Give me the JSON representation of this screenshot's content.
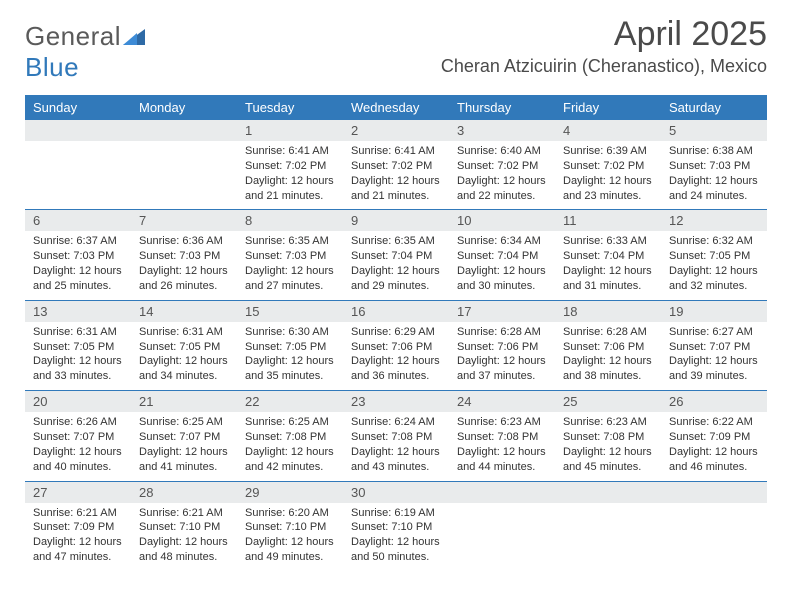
{
  "logo": {
    "text1": "General",
    "text2": "Blue"
  },
  "title": "April 2025",
  "location": "Cheran Atzicuirin (Cheranastico), Mexico",
  "weekdays": [
    "Sunday",
    "Monday",
    "Tuesday",
    "Wednesday",
    "Thursday",
    "Friday",
    "Saturday"
  ],
  "colors": {
    "headerBar": "#3179ba",
    "dayNumBg": "#e9ebec",
    "text": "#333333",
    "titleText": "#4a4a4a",
    "logoGray": "#5a5a5a",
    "logoBlue": "#3179ba",
    "background": "#ffffff"
  },
  "layout": {
    "pageWidth": 792,
    "pageHeight": 612,
    "columns": 7,
    "rows": 5,
    "titleFontSize": 34,
    "locationFontSize": 18,
    "weekdayFontSize": 13,
    "dayNumFontSize": 13,
    "bodyFontSize": 11
  },
  "weeks": [
    [
      null,
      null,
      {
        "num": "1",
        "sunrise": "6:41 AM",
        "sunset": "7:02 PM",
        "daylight": "12 hours and 21 minutes."
      },
      {
        "num": "2",
        "sunrise": "6:41 AM",
        "sunset": "7:02 PM",
        "daylight": "12 hours and 21 minutes."
      },
      {
        "num": "3",
        "sunrise": "6:40 AM",
        "sunset": "7:02 PM",
        "daylight": "12 hours and 22 minutes."
      },
      {
        "num": "4",
        "sunrise": "6:39 AM",
        "sunset": "7:02 PM",
        "daylight": "12 hours and 23 minutes."
      },
      {
        "num": "5",
        "sunrise": "6:38 AM",
        "sunset": "7:03 PM",
        "daylight": "12 hours and 24 minutes."
      }
    ],
    [
      {
        "num": "6",
        "sunrise": "6:37 AM",
        "sunset": "7:03 PM",
        "daylight": "12 hours and 25 minutes."
      },
      {
        "num": "7",
        "sunrise": "6:36 AM",
        "sunset": "7:03 PM",
        "daylight": "12 hours and 26 minutes."
      },
      {
        "num": "8",
        "sunrise": "6:35 AM",
        "sunset": "7:03 PM",
        "daylight": "12 hours and 27 minutes."
      },
      {
        "num": "9",
        "sunrise": "6:35 AM",
        "sunset": "7:04 PM",
        "daylight": "12 hours and 29 minutes."
      },
      {
        "num": "10",
        "sunrise": "6:34 AM",
        "sunset": "7:04 PM",
        "daylight": "12 hours and 30 minutes."
      },
      {
        "num": "11",
        "sunrise": "6:33 AM",
        "sunset": "7:04 PM",
        "daylight": "12 hours and 31 minutes."
      },
      {
        "num": "12",
        "sunrise": "6:32 AM",
        "sunset": "7:05 PM",
        "daylight": "12 hours and 32 minutes."
      }
    ],
    [
      {
        "num": "13",
        "sunrise": "6:31 AM",
        "sunset": "7:05 PM",
        "daylight": "12 hours and 33 minutes."
      },
      {
        "num": "14",
        "sunrise": "6:31 AM",
        "sunset": "7:05 PM",
        "daylight": "12 hours and 34 minutes."
      },
      {
        "num": "15",
        "sunrise": "6:30 AM",
        "sunset": "7:05 PM",
        "daylight": "12 hours and 35 minutes."
      },
      {
        "num": "16",
        "sunrise": "6:29 AM",
        "sunset": "7:06 PM",
        "daylight": "12 hours and 36 minutes."
      },
      {
        "num": "17",
        "sunrise": "6:28 AM",
        "sunset": "7:06 PM",
        "daylight": "12 hours and 37 minutes."
      },
      {
        "num": "18",
        "sunrise": "6:28 AM",
        "sunset": "7:06 PM",
        "daylight": "12 hours and 38 minutes."
      },
      {
        "num": "19",
        "sunrise": "6:27 AM",
        "sunset": "7:07 PM",
        "daylight": "12 hours and 39 minutes."
      }
    ],
    [
      {
        "num": "20",
        "sunrise": "6:26 AM",
        "sunset": "7:07 PM",
        "daylight": "12 hours and 40 minutes."
      },
      {
        "num": "21",
        "sunrise": "6:25 AM",
        "sunset": "7:07 PM",
        "daylight": "12 hours and 41 minutes."
      },
      {
        "num": "22",
        "sunrise": "6:25 AM",
        "sunset": "7:08 PM",
        "daylight": "12 hours and 42 minutes."
      },
      {
        "num": "23",
        "sunrise": "6:24 AM",
        "sunset": "7:08 PM",
        "daylight": "12 hours and 43 minutes."
      },
      {
        "num": "24",
        "sunrise": "6:23 AM",
        "sunset": "7:08 PM",
        "daylight": "12 hours and 44 minutes."
      },
      {
        "num": "25",
        "sunrise": "6:23 AM",
        "sunset": "7:08 PM",
        "daylight": "12 hours and 45 minutes."
      },
      {
        "num": "26",
        "sunrise": "6:22 AM",
        "sunset": "7:09 PM",
        "daylight": "12 hours and 46 minutes."
      }
    ],
    [
      {
        "num": "27",
        "sunrise": "6:21 AM",
        "sunset": "7:09 PM",
        "daylight": "12 hours and 47 minutes."
      },
      {
        "num": "28",
        "sunrise": "6:21 AM",
        "sunset": "7:10 PM",
        "daylight": "12 hours and 48 minutes."
      },
      {
        "num": "29",
        "sunrise": "6:20 AM",
        "sunset": "7:10 PM",
        "daylight": "12 hours and 49 minutes."
      },
      {
        "num": "30",
        "sunrise": "6:19 AM",
        "sunset": "7:10 PM",
        "daylight": "12 hours and 50 minutes."
      },
      null,
      null,
      null
    ]
  ],
  "labels": {
    "sunrise": "Sunrise:",
    "sunset": "Sunset:",
    "daylight": "Daylight:"
  }
}
